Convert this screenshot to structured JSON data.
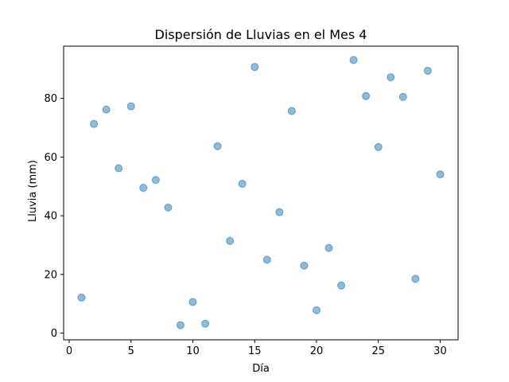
{
  "chart_data": {
    "type": "scatter",
    "title": "Dispersión de Lluvias en el Mes 4",
    "xlabel": "Día",
    "ylabel": "Lluvia (mm)",
    "xlim": [
      -0.45,
      31.45
    ],
    "ylim": [
      -2.3,
      97.8
    ],
    "xticks": [
      0,
      5,
      10,
      15,
      20,
      25,
      30
    ],
    "yticks": [
      0,
      20,
      40,
      60,
      80
    ],
    "xtick_labels": [
      "0",
      "5",
      "10",
      "15",
      "20",
      "25",
      "30"
    ],
    "ytick_labels": [
      "0",
      "20",
      "40",
      "60",
      "80"
    ],
    "grid": false,
    "marker_color": "#1f77b4",
    "marker_alpha": 0.5,
    "series": [
      {
        "x": [
          1,
          2,
          3,
          4,
          5,
          6,
          7,
          8,
          9,
          10,
          11,
          12,
          13,
          14,
          15,
          16,
          17,
          18,
          19,
          20,
          21,
          22,
          23,
          24,
          25,
          26,
          27,
          28,
          29,
          30
        ],
        "y": [
          12.1,
          71.3,
          76.2,
          56.2,
          77.3,
          49.5,
          52.2,
          42.8,
          2.7,
          10.6,
          3.2,
          63.7,
          31.4,
          50.9,
          90.7,
          25.0,
          41.2,
          75.7,
          23.0,
          7.8,
          29.0,
          16.2,
          93.1,
          80.8,
          63.4,
          87.2,
          80.5,
          18.5,
          89.4,
          54.1
        ]
      }
    ]
  }
}
